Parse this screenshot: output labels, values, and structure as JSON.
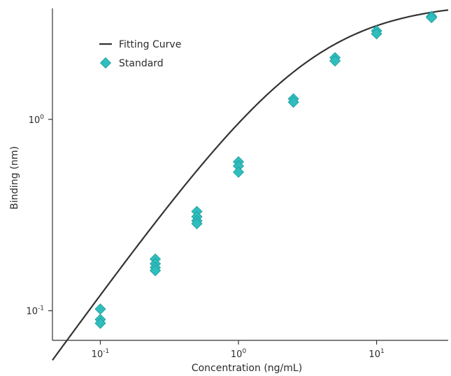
{
  "chart_data": {
    "type": "scatter",
    "title": "",
    "xlabel": "Concentration (ng/mL)",
    "ylabel": "Binding (nm)",
    "xscale": "log",
    "yscale": "log",
    "xlim": [
      0.045,
      33
    ],
    "ylim": [
      0.07,
      3.8
    ],
    "grid": false,
    "legend_position": "top-left",
    "x_ticks": [
      {
        "value": 0.1,
        "base": "10",
        "exp": "-1"
      },
      {
        "value": 1,
        "base": "10",
        "exp": "0"
      },
      {
        "value": 10,
        "base": "10",
        "exp": "1"
      }
    ],
    "y_ticks": [
      {
        "value": 0.1,
        "base": "10",
        "exp": "-1"
      },
      {
        "value": 1,
        "base": "10",
        "exp": "0"
      }
    ],
    "colors": {
      "curve": "#333333",
      "points": "#2fbdbd",
      "points_stroke": "#1f9c9c"
    },
    "series": [
      {
        "name": "Fitting Curve",
        "kind": "line",
        "model": "4PL",
        "params": {
          "bottom": 0.0,
          "top": 4.1,
          "ec50": 3.3,
          "hill": 1.0
        }
      },
      {
        "name": "Standard",
        "kind": "scatter",
        "points": [
          {
            "x": 0.1,
            "y": 0.102
          },
          {
            "x": 0.1,
            "y": 0.09
          },
          {
            "x": 0.1,
            "y": 0.086
          },
          {
            "x": 0.25,
            "y": 0.186
          },
          {
            "x": 0.25,
            "y": 0.176
          },
          {
            "x": 0.25,
            "y": 0.168
          },
          {
            "x": 0.25,
            "y": 0.162
          },
          {
            "x": 0.5,
            "y": 0.33
          },
          {
            "x": 0.5,
            "y": 0.31
          },
          {
            "x": 0.5,
            "y": 0.295
          },
          {
            "x": 0.5,
            "y": 0.285
          },
          {
            "x": 1,
            "y": 0.6
          },
          {
            "x": 1,
            "y": 0.57
          },
          {
            "x": 1,
            "y": 0.53
          },
          {
            "x": 2.5,
            "y": 1.28
          },
          {
            "x": 2.5,
            "y": 1.23
          },
          {
            "x": 5,
            "y": 2.1
          },
          {
            "x": 5,
            "y": 2.02
          },
          {
            "x": 10,
            "y": 2.9
          },
          {
            "x": 10,
            "y": 2.8
          },
          {
            "x": 25,
            "y": 3.45
          },
          {
            "x": 25,
            "y": 3.4
          }
        ]
      }
    ]
  }
}
